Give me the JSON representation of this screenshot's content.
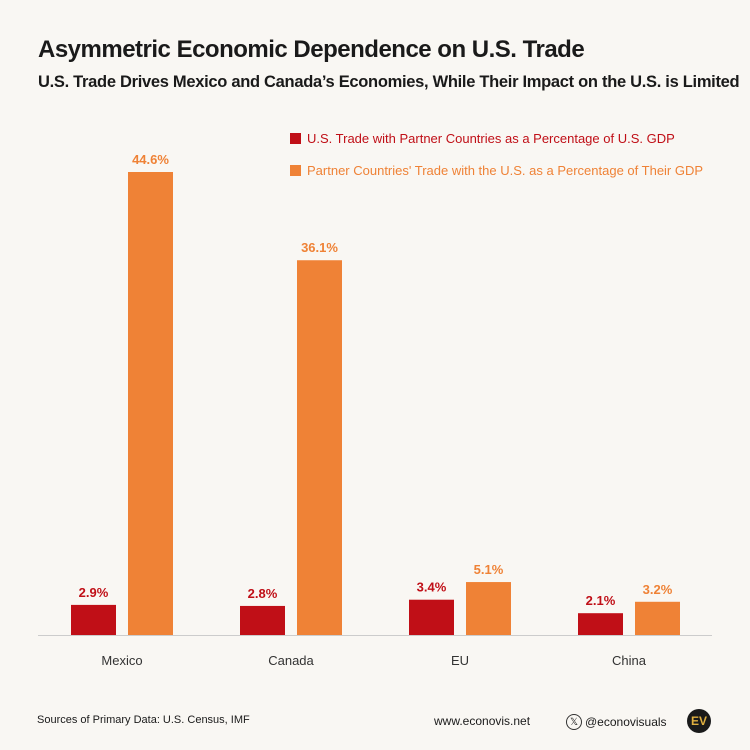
{
  "header": {
    "title": "Asymmetric Economic Dependence on U.S. Trade",
    "subtitle": "U.S. Trade Drives Mexico and Canada’s Economies, While Their Impact on the U.S. is Limited"
  },
  "chart_data": {
    "type": "bar",
    "categories": [
      "Mexico",
      "Canada",
      "EU",
      "China"
    ],
    "series": [
      {
        "name": "U.S. Trade with Partner Countries as a Percentage of U.S. GDP",
        "values": [
          2.9,
          2.8,
          3.4,
          2.1
        ],
        "color": "#c00f17",
        "labels": [
          "2.9%",
          "2.8%",
          "3.4%",
          "2.1%"
        ]
      },
      {
        "name": "Partner Countries' Trade with the U.S. as a Percentage of Their GDP",
        "values": [
          44.6,
          36.1,
          5.1,
          3.2
        ],
        "color": "#ef8236",
        "labels": [
          "44.6%",
          "36.1%",
          "5.1%",
          "3.2%"
        ]
      }
    ],
    "ylim": [
      0,
      46
    ],
    "grid": false,
    "legend": "top-right"
  },
  "footer": {
    "source": "Sources of Primary Data: U.S. Census, IMF",
    "website": "www.econovis.net",
    "handle": "@econovisuals",
    "x_icon": "x-logo-icon",
    "logo": "EV"
  }
}
